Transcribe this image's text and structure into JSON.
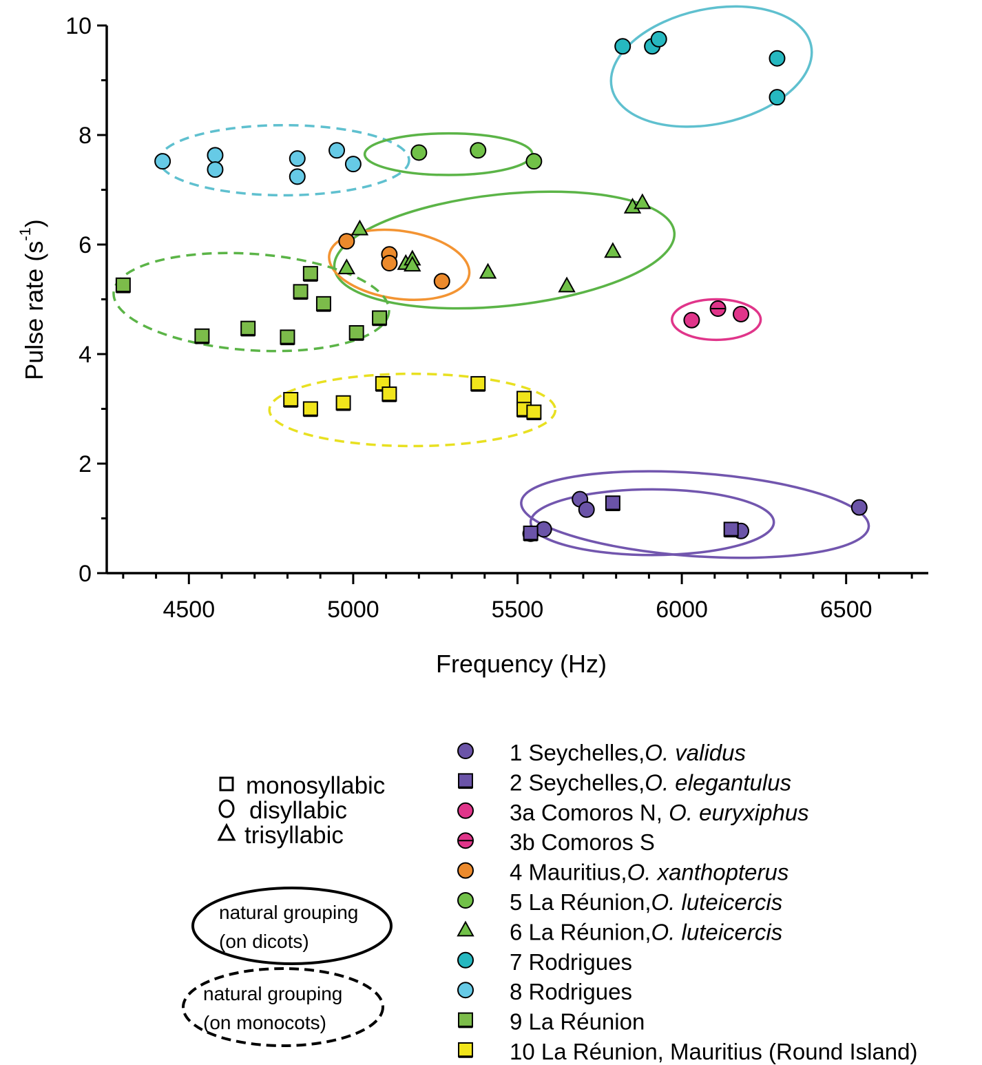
{
  "chart_data": {
    "type": "scatter",
    "xlabel": "Frequency (Hz)",
    "ylabel": "Pulse rate (s",
    "ylabel_superscript": "-1",
    "ylabel_close": ")",
    "xlim": [
      4250,
      6750
    ],
    "ylim": [
      0,
      10
    ],
    "xticks": [
      4500,
      5000,
      5500,
      6000,
      6500
    ],
    "yticks": [
      0,
      2,
      4,
      6,
      8,
      10
    ],
    "grid": false,
    "legend_position": "bottom-right",
    "series": [
      {
        "id": "1",
        "name_plain": "1 Seychelles,",
        "name_species": "O. validus",
        "shape": "circle",
        "color": "#6b54a8",
        "points": [
          [
            5540,
            0.72
          ],
          [
            5580,
            0.8
          ],
          [
            5690,
            1.35
          ],
          [
            5710,
            1.16
          ],
          [
            6180,
            0.77
          ],
          [
            6540,
            1.2
          ]
        ]
      },
      {
        "id": "2",
        "name_plain": "2 Seychelles,",
        "name_species": "O. elegantulus",
        "shape": "square",
        "color": "#6b54a8",
        "points": [
          [
            5540,
            0.73
          ],
          [
            5790,
            1.28
          ],
          [
            6150,
            0.8
          ]
        ]
      },
      {
        "id": "3a",
        "name_plain": "3a Comoros N,",
        "name_species": "O. euryxiphus",
        "shape": "circle",
        "color": "#e0358a",
        "points": [
          [
            6030,
            4.62
          ],
          [
            6180,
            4.73
          ]
        ]
      },
      {
        "id": "3b",
        "name_plain": "3b Comoros S",
        "name_species": "",
        "shape": "circle-bar",
        "color": "#e0358a",
        "points": [
          [
            6110,
            4.83
          ]
        ]
      },
      {
        "id": "4",
        "name_plain": "4 Mauritius,",
        "name_species": "O. xanthopterus",
        "shape": "circle",
        "color": "#ec8a2c",
        "points": [
          [
            4980,
            6.06
          ],
          [
            5110,
            5.82
          ],
          [
            5110,
            5.66
          ],
          [
            5270,
            5.33
          ]
        ]
      },
      {
        "id": "5",
        "name_plain": "5 La Réunion,",
        "name_species": "O. luteicercis",
        "shape": "circle",
        "color": "#71c148",
        "points": [
          [
            5200,
            7.68
          ],
          [
            5380,
            7.72
          ],
          [
            5550,
            7.52
          ]
        ]
      },
      {
        "id": "6",
        "name_plain": "6 La Réunion,",
        "name_species": "O. luteicercis",
        "shape": "triangle",
        "color": "#71c148",
        "points": [
          [
            4980,
            5.57
          ],
          [
            5020,
            6.28
          ],
          [
            5160,
            5.65
          ],
          [
            5180,
            5.73
          ],
          [
            5180,
            5.62
          ],
          [
            5410,
            5.49
          ],
          [
            5650,
            5.24
          ],
          [
            5790,
            5.87
          ],
          [
            5850,
            6.68
          ],
          [
            5880,
            6.76
          ]
        ]
      },
      {
        "id": "7",
        "name_plain": "7 Rodrigues",
        "name_species": "",
        "shape": "circle",
        "color": "#26b8c0",
        "points": [
          [
            5820,
            9.62
          ],
          [
            5910,
            9.62
          ],
          [
            5930,
            9.75
          ],
          [
            6290,
            9.4
          ],
          [
            6290,
            8.69
          ]
        ]
      },
      {
        "id": "8",
        "name_plain": "8 Rodrigues",
        "name_species": "",
        "shape": "circle",
        "color": "#66cae6",
        "points": [
          [
            4420,
            7.52
          ],
          [
            4580,
            7.63
          ],
          [
            4580,
            7.37
          ],
          [
            4830,
            7.57
          ],
          [
            4830,
            7.24
          ],
          [
            4950,
            7.72
          ],
          [
            5000,
            7.47
          ]
        ]
      },
      {
        "id": "9",
        "name_plain": "9 La Réunion",
        "name_species": "",
        "shape": "square",
        "color": "#7cbc4a",
        "points": [
          [
            4300,
            5.26
          ],
          [
            4540,
            4.33
          ],
          [
            4680,
            4.47
          ],
          [
            4800,
            4.31
          ],
          [
            4840,
            5.14
          ],
          [
            4870,
            5.47
          ],
          [
            4910,
            4.92
          ],
          [
            5010,
            4.39
          ],
          [
            5080,
            4.66
          ]
        ]
      },
      {
        "id": "10",
        "name_plain": "10 La Réunion, Mauritius (Round Island)",
        "name_species": "",
        "shape": "square",
        "color": "#f1e51b",
        "points": [
          [
            4810,
            3.17
          ],
          [
            4870,
            3.0
          ],
          [
            4970,
            3.11
          ],
          [
            5090,
            3.46
          ],
          [
            5110,
            3.27
          ],
          [
            5380,
            3.46
          ],
          [
            5520,
            3.19
          ],
          [
            5520,
            2.99
          ],
          [
            5550,
            2.94
          ]
        ]
      }
    ],
    "groupings": [
      {
        "color": "#5fc0cf",
        "style": "solid",
        "cx": 6090,
        "cy": 9.25,
        "rx": 310,
        "ry": 1.05,
        "rotate": 12
      },
      {
        "color": "#5fc0cf",
        "style": "dashed",
        "cx": 4790,
        "cy": 7.54,
        "rx": 380,
        "ry": 0.64,
        "rotate": 0
      },
      {
        "color": "#5bb447",
        "style": "solid",
        "cx": 5290,
        "cy": 7.65,
        "rx": 255,
        "ry": 0.38,
        "rotate": 0
      },
      {
        "color": "#5bb447",
        "style": "solid",
        "cx": 5460,
        "cy": 5.9,
        "rx": 520,
        "ry": 1.02,
        "rotate": 6
      },
      {
        "color": "#f39433",
        "style": "solid",
        "cx": 5140,
        "cy": 5.63,
        "rx": 215,
        "ry": 0.62,
        "rotate": -8
      },
      {
        "color": "#e0358a",
        "style": "solid",
        "cx": 6105,
        "cy": 4.63,
        "rx": 135,
        "ry": 0.37,
        "rotate": 0
      },
      {
        "color": "#5bb447",
        "style": "dashed",
        "cx": 4690,
        "cy": 4.95,
        "rx": 420,
        "ry": 0.88,
        "rotate": -4
      },
      {
        "color": "#e8e021",
        "style": "dashed",
        "cx": 5180,
        "cy": 2.98,
        "rx": 435,
        "ry": 0.66,
        "rotate": 0
      },
      {
        "color": "#7256ae",
        "style": "solid",
        "cx": 5910,
        "cy": 0.93,
        "rx": 370,
        "ry": 0.6,
        "rotate": 0
      },
      {
        "color": "#7256ae",
        "style": "solid",
        "cx": 6040,
        "cy": 1.07,
        "rx": 530,
        "ry": 0.76,
        "rotate": -4
      }
    ]
  },
  "shape_key": [
    {
      "shape": "square",
      "label": "monosyllabic"
    },
    {
      "shape": "circle",
      "label": "disyllabic"
    },
    {
      "shape": "triangle",
      "label": "trisyllabic"
    }
  ],
  "grouping_key": [
    {
      "style": "solid",
      "line1": "natural grouping",
      "line2": "(on dicots)"
    },
    {
      "style": "dashed",
      "line1": "natural grouping",
      "line2": "(on monocots)"
    }
  ]
}
